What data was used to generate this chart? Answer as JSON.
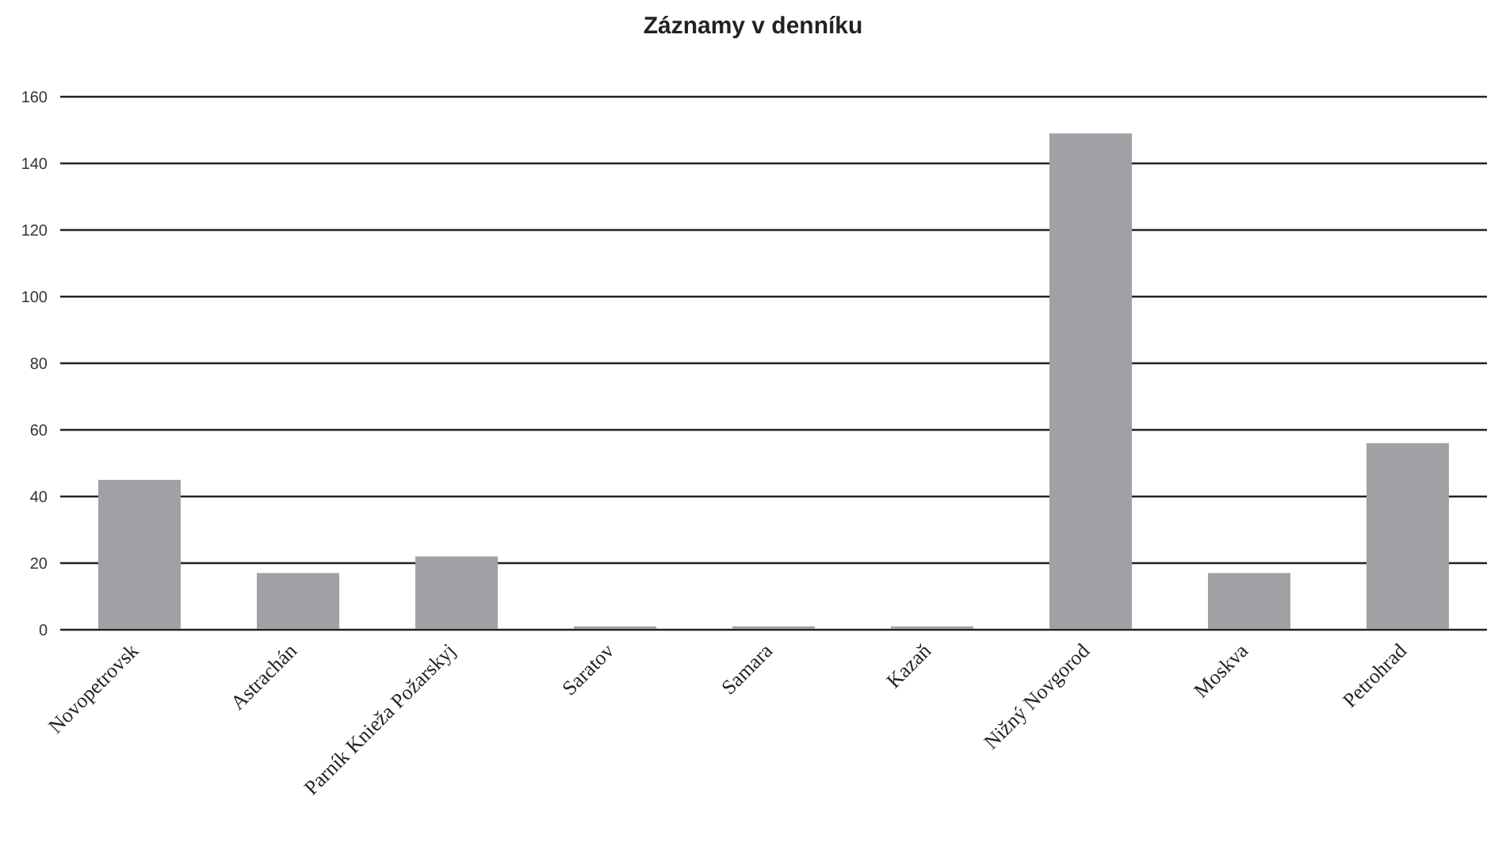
{
  "chart_data": {
    "type": "bar",
    "title": "Záznamy v denníku",
    "categories": [
      "Novopetrovsk",
      "Astrachán",
      "Parník Knieža Požarskyj",
      "Saratov",
      "Samara",
      "Kazaň",
      "Nižný Novgorod",
      "Moskva",
      "Petrohrad"
    ],
    "values": [
      45,
      17,
      22,
      1,
      1,
      1,
      149,
      17,
      56
    ],
    "color": "#a0a1a4",
    "ylim": [
      0,
      160
    ],
    "yticks": [
      0,
      20,
      40,
      60,
      80,
      100,
      120,
      140,
      160
    ],
    "grid": "y",
    "legend": false
  }
}
